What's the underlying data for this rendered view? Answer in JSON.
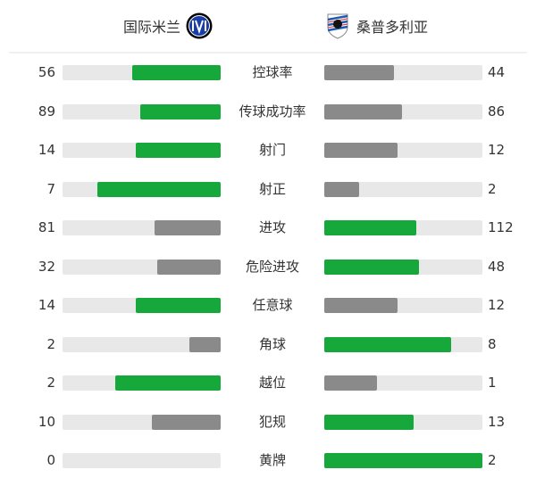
{
  "home": {
    "name": "国际米兰",
    "logo": "inter-milan-logo"
  },
  "away": {
    "name": "桑普多利亚",
    "logo": "sampdoria-logo"
  },
  "colors": {
    "higher": "#16a83a",
    "lower": "#8a8a8a",
    "track": "#e8e8e8"
  },
  "stats": [
    {
      "label": "控球率",
      "home": 56,
      "away": 44
    },
    {
      "label": "传球成功率",
      "home": 89,
      "away": 86
    },
    {
      "label": "射门",
      "home": 14,
      "away": 12
    },
    {
      "label": "射正",
      "home": 7,
      "away": 2
    },
    {
      "label": "进攻",
      "home": 81,
      "away": 112
    },
    {
      "label": "危险进攻",
      "home": 32,
      "away": 48
    },
    {
      "label": "任意球",
      "home": 14,
      "away": 12
    },
    {
      "label": "角球",
      "home": 2,
      "away": 8
    },
    {
      "label": "越位",
      "home": 2,
      "away": 1
    },
    {
      "label": "犯规",
      "home": 10,
      "away": 13
    },
    {
      "label": "黄牌",
      "home": 0,
      "away": 2
    }
  ]
}
